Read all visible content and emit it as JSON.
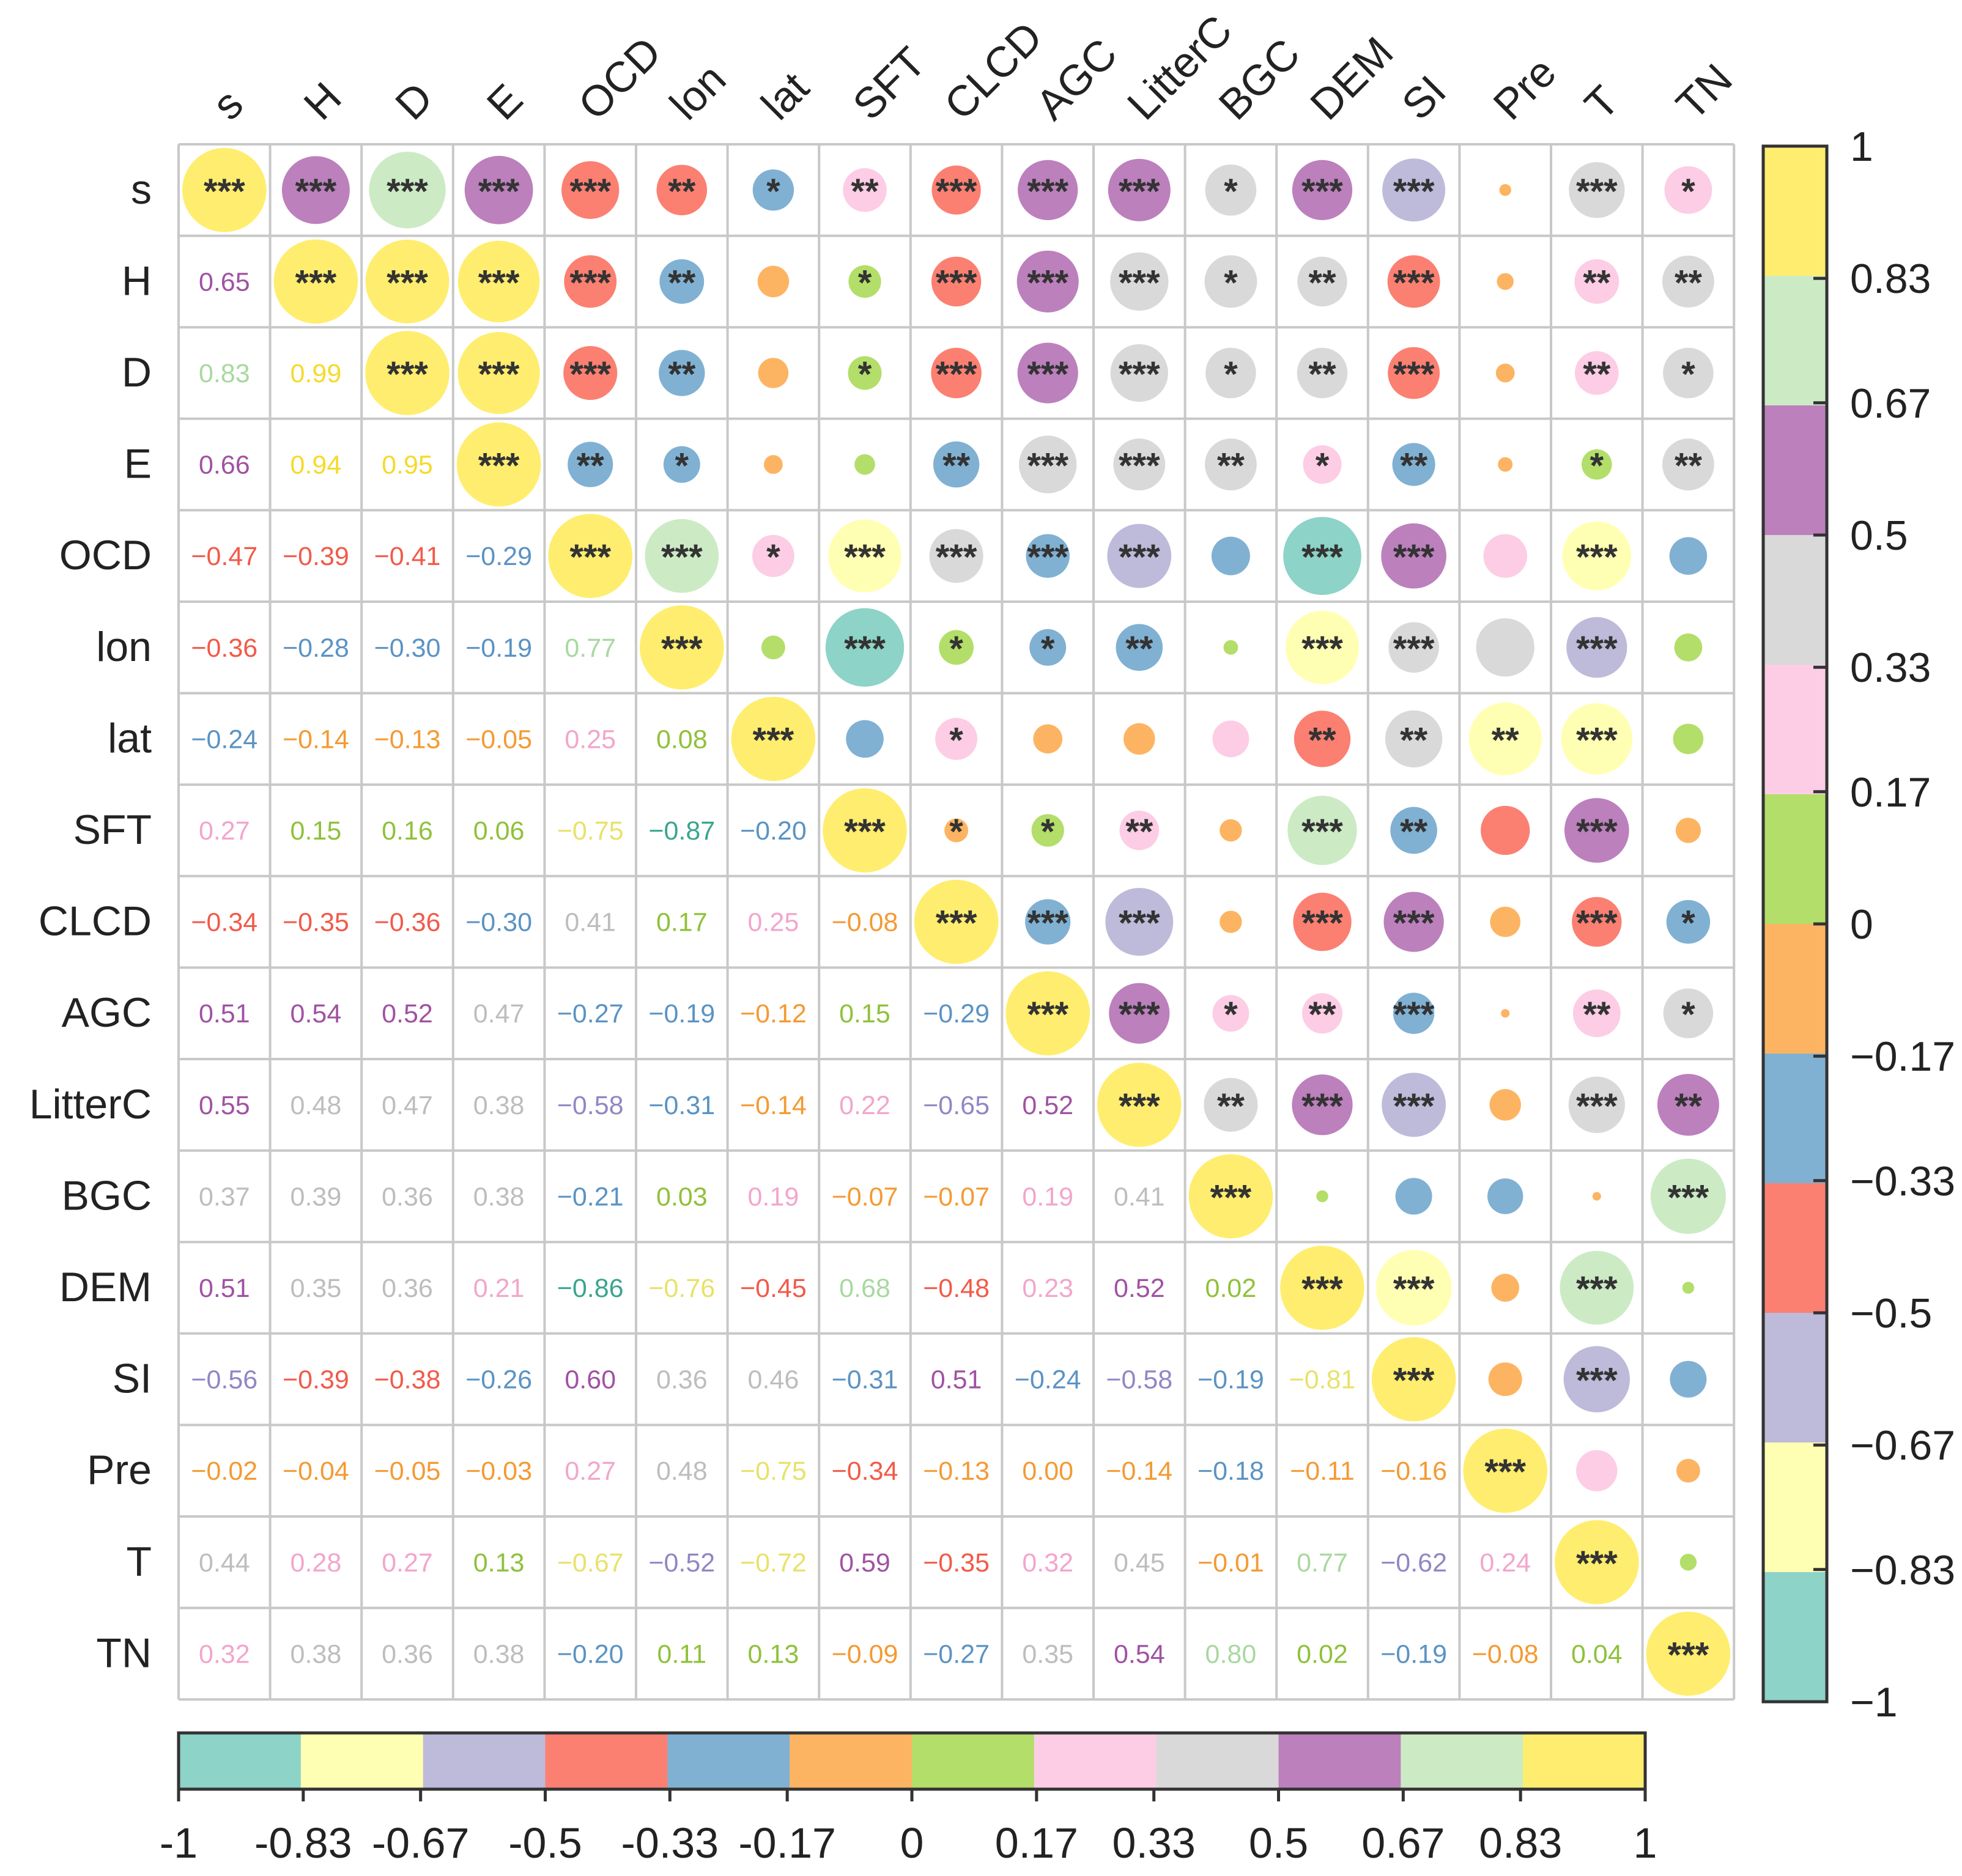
{
  "chart_data": {
    "type": "heatmap",
    "subtype": "correlation-matrix-mixed",
    "description_of_encoding": "upper triangle: circles sized and coloured by correlation with significance stars; lower triangle: coefficient text",
    "variables": [
      "s",
      "H",
      "D",
      "E",
      "OCD",
      "lon",
      "lat",
      "SFT",
      "CLCD",
      "AGC",
      "LitterC",
      "BGC",
      "DEM",
      "SI",
      "Pre",
      "T",
      "TN"
    ],
    "colorbar": {
      "breaks": [
        -1,
        -0.83,
        -0.67,
        -0.5,
        -0.33,
        -0.17,
        0,
        0.17,
        0.33,
        0.5,
        0.67,
        0.83,
        1
      ],
      "tick_labels": [
        "-1",
        "-0.83",
        "-0.67",
        "-0.5",
        "-0.33",
        "-0.17",
        "0",
        "0.17",
        "0.33",
        "0.5",
        "0.67",
        "0.83",
        "1"
      ],
      "vertical_tick_labels": [
        "−1",
        "−0.83",
        "−0.67",
        "−0.5",
        "−0.33",
        "−0.17",
        "0",
        "0.17",
        "0.33",
        "0.5",
        "0.67",
        "0.83",
        "1"
      ],
      "colors": [
        "#8dd3c7",
        "#ffffb3",
        "#bebada",
        "#fb8072",
        "#80b1d3",
        "#fdb462",
        "#b3de69",
        "#fccde5",
        "#d9d9d9",
        "#bc80bd",
        "#ccebc5",
        "#ffed6f"
      ]
    },
    "lower_text": [
      [],
      [
        "0.65"
      ],
      [
        "0.83",
        "0.99"
      ],
      [
        "0.66",
        "0.94",
        "0.95"
      ],
      [
        "−0.47",
        "−0.39",
        "−0.41",
        "−0.29"
      ],
      [
        "−0.36",
        "−0.28",
        "−0.30",
        "−0.19",
        "0.77"
      ],
      [
        "−0.24",
        "−0.14",
        "−0.13",
        "−0.05",
        "0.25",
        "0.08"
      ],
      [
        "0.27",
        "0.15",
        "0.16",
        "0.06",
        "−0.75",
        "−0.87",
        "−0.20"
      ],
      [
        "−0.34",
        "−0.35",
        "−0.36",
        "−0.30",
        "0.41",
        "0.17",
        "0.25",
        "−0.08"
      ],
      [
        "0.51",
        "0.54",
        "0.52",
        "0.47",
        "−0.27",
        "−0.19",
        "−0.12",
        "0.15",
        "−0.29"
      ],
      [
        "0.55",
        "0.48",
        "0.47",
        "0.38",
        "−0.58",
        "−0.31",
        "−0.14",
        "0.22",
        "−0.65",
        "0.52"
      ],
      [
        "0.37",
        "0.39",
        "0.36",
        "0.38",
        "−0.21",
        "0.03",
        "0.19",
        "−0.07",
        "−0.07",
        "0.19",
        "0.41"
      ],
      [
        "0.51",
        "0.35",
        "0.36",
        "0.21",
        "−0.86",
        "−0.76",
        "−0.45",
        "0.68",
        "−0.48",
        "0.23",
        "0.52",
        "0.02"
      ],
      [
        "−0.56",
        "−0.39",
        "−0.38",
        "−0.26",
        "0.60",
        "0.36",
        "0.46",
        "−0.31",
        "0.51",
        "−0.24",
        "−0.58",
        "−0.19",
        "−0.81"
      ],
      [
        "−0.02",
        "−0.04",
        "−0.05",
        "−0.03",
        "0.27",
        "0.48",
        "−0.75",
        "−0.34",
        "−0.13",
        "0.00",
        "−0.14",
        "−0.18",
        "−0.11",
        "−0.16"
      ],
      [
        "0.44",
        "0.28",
        "0.27",
        "0.13",
        "−0.67",
        "−0.52",
        "−0.72",
        "0.59",
        "−0.35",
        "0.32",
        "0.45",
        "−0.01",
        "0.77",
        "−0.62",
        "0.24"
      ],
      [
        "0.32",
        "0.38",
        "0.36",
        "0.38",
        "−0.20",
        "0.11",
        "0.13",
        "−0.09",
        "−0.27",
        "0.35",
        "0.54",
        "0.80",
        "0.02",
        "−0.19",
        "−0.08",
        "0.04"
      ]
    ],
    "upper_sig": [
      [
        "***",
        "***",
        "***",
        "***",
        "***",
        "**",
        "*",
        "**",
        "***",
        "***",
        "***",
        "*",
        "***",
        "***",
        "",
        "***",
        "*"
      ],
      [
        "",
        "***",
        "***",
        "***",
        "***",
        "**",
        "",
        "*",
        "***",
        "***",
        "***",
        "*",
        "**",
        "***",
        "",
        "**",
        "**"
      ],
      [
        "",
        "",
        "***",
        "***",
        "***",
        "**",
        "",
        "*",
        "***",
        "***",
        "***",
        "*",
        "**",
        "***",
        "",
        "**",
        "*"
      ],
      [
        "",
        "",
        "",
        "***",
        "**",
        "*",
        "",
        "",
        "**",
        "***",
        "***",
        "**",
        "*",
        "**",
        "",
        "*",
        "**"
      ],
      [
        "",
        "",
        "",
        "",
        "***",
        "***",
        "*",
        "***",
        "***",
        "***",
        "***",
        "",
        "***",
        "***",
        "",
        "***",
        ""
      ],
      [
        "",
        "",
        "",
        "",
        "",
        "***",
        "",
        "***",
        "*",
        "*",
        "**",
        "",
        "***",
        "***",
        "",
        "***",
        ""
      ],
      [
        "",
        "",
        "",
        "",
        "",
        "",
        "***",
        "",
        "*",
        "",
        "",
        "",
        "**",
        "**",
        "**",
        "***",
        ""
      ],
      [
        "",
        "",
        "",
        "",
        "",
        "",
        "",
        "***",
        "*",
        "*",
        "**",
        "",
        "***",
        "**",
        "",
        "***",
        ""
      ],
      [
        "",
        "",
        "",
        "",
        "",
        "",
        "",
        "",
        "***",
        "***",
        "***",
        "",
        "***",
        "***",
        "",
        "***",
        "*"
      ],
      [
        "",
        "",
        "",
        "",
        "",
        "",
        "",
        "",
        "",
        "***",
        "***",
        "*",
        "**",
        "***",
        "",
        "**",
        "*"
      ],
      [
        "",
        "",
        "",
        "",
        "",
        "",
        "",
        "",
        "",
        "",
        "***",
        "**",
        "***",
        "***",
        "",
        "***",
        "**"
      ],
      [
        "",
        "",
        "",
        "",
        "",
        "",
        "",
        "",
        "",
        "",
        "",
        "***",
        "",
        "",
        "",
        "",
        "***"
      ],
      [
        "",
        "",
        "",
        "",
        "",
        "",
        "",
        "",
        "",
        "",
        "",
        "",
        "***",
        "***",
        "",
        "***",
        ""
      ],
      [
        "",
        "",
        "",
        "",
        "",
        "",
        "",
        "",
        "",
        "",
        "",
        "",
        "",
        "***",
        "",
        "***",
        ""
      ],
      [
        "",
        "",
        "",
        "",
        "",
        "",
        "",
        "",
        "",
        "",
        "",
        "",
        "",
        "",
        "***",
        "",
        ""
      ],
      [
        "",
        "",
        "",
        "",
        "",
        "",
        "",
        "",
        "",
        "",
        "",
        "",
        "",
        "",
        "",
        "***",
        ""
      ],
      [
        "",
        "",
        "",
        "",
        "",
        "",
        "",
        "",
        "",
        "",
        "",
        "",
        "",
        "",
        "",
        "",
        "***"
      ]
    ],
    "title": "",
    "xlabel": "",
    "ylabel": ""
  }
}
